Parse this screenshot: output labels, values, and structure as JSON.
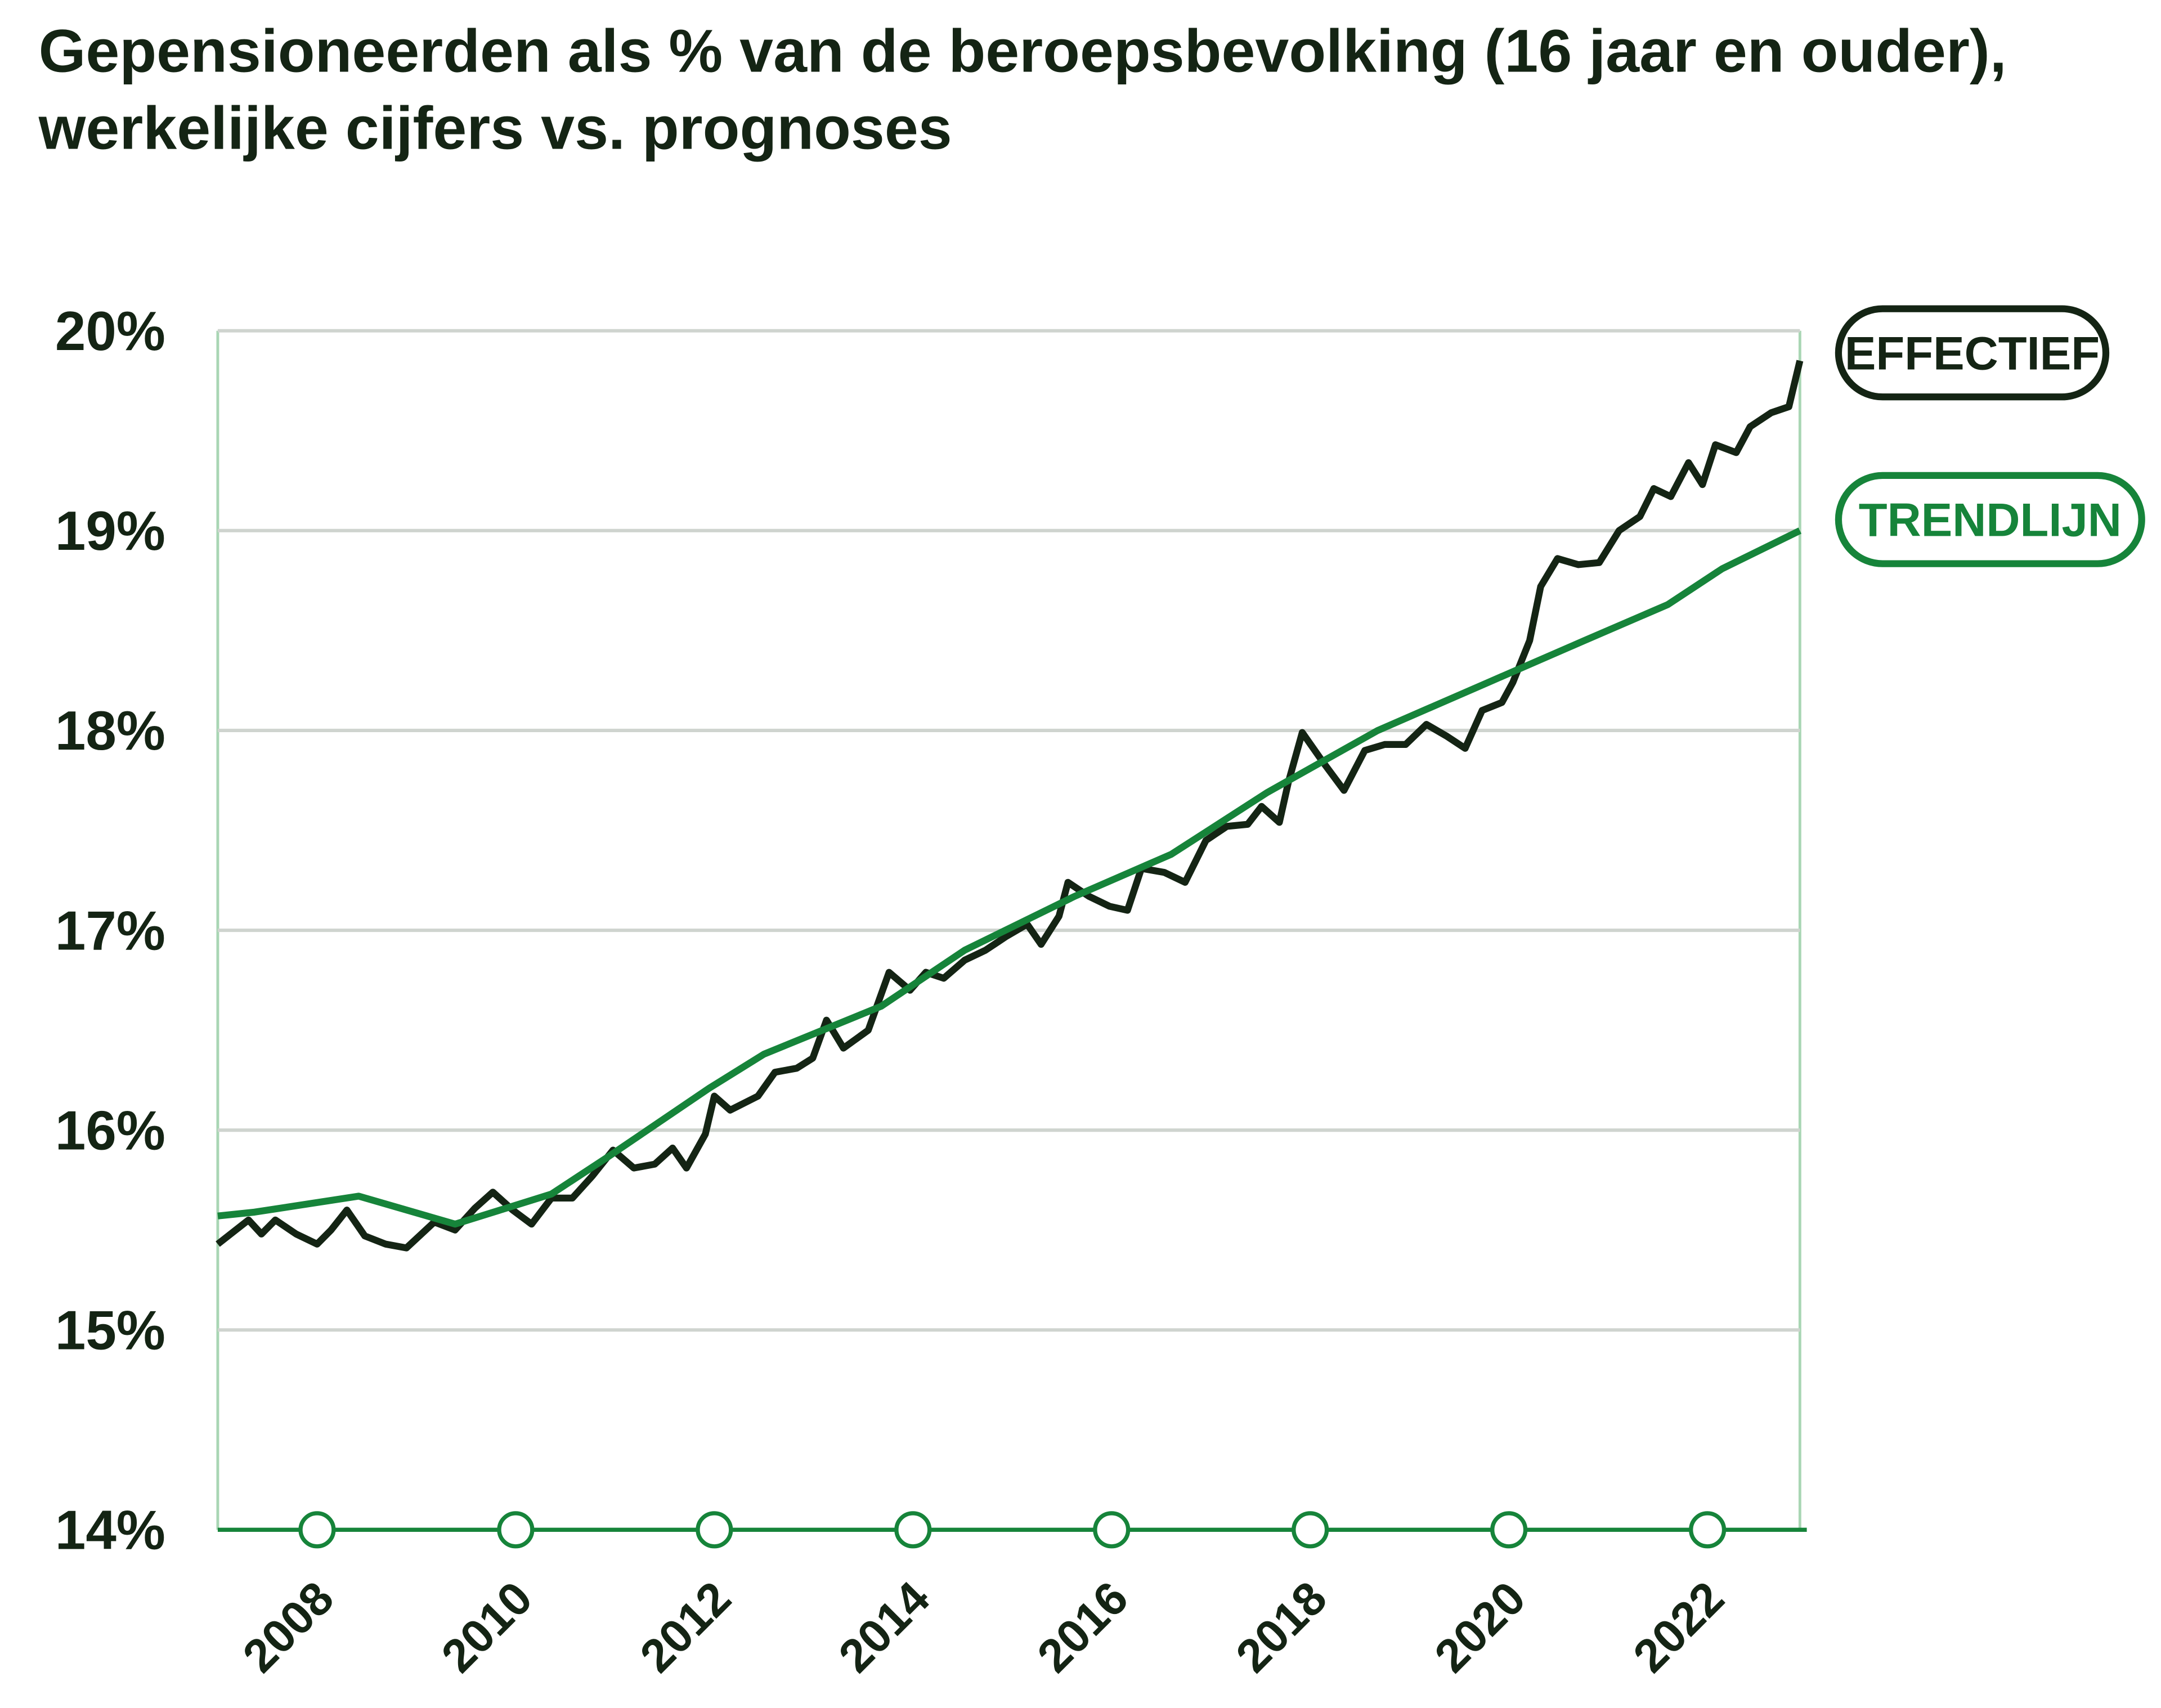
{
  "chart_data": {
    "type": "line",
    "title": "Gepensioneerden als % van de beroepsbevolking (16 jaar en ouder), werkelijke cijfers vs. prognoses",
    "xlim": [
      2007,
      2023
    ],
    "xticks": [
      2008,
      2010,
      2012,
      2014,
      2016,
      2018,
      2020,
      2022
    ],
    "ylim": [
      14,
      20
    ],
    "yticks": [
      {
        "value": 14,
        "label": "14%"
      },
      {
        "value": 15,
        "label": "15%"
      },
      {
        "value": 16,
        "label": "16%"
      },
      {
        "value": 17,
        "label": "17%"
      },
      {
        "value": 18,
        "label": "18%"
      },
      {
        "value": 19,
        "label": "19%"
      },
      {
        "value": 20,
        "label": "20%"
      }
    ],
    "grid": true,
    "series": [
      {
        "name": "EFFECTIEF",
        "color": "#142414",
        "x": [
          2007.0,
          2007.31,
          2007.44,
          2007.58,
          2007.79,
          2008.0,
          2008.14,
          2008.3,
          2008.48,
          2008.69,
          2008.9,
          2009.18,
          2009.39,
          2009.59,
          2009.77,
          2009.97,
          2010.16,
          2010.36,
          2010.57,
          2010.77,
          2010.98,
          2011.19,
          2011.4,
          2011.58,
          2011.72,
          2011.91,
          2012.0,
          2012.16,
          2012.44,
          2012.61,
          2012.83,
          2012.99,
          2013.13,
          2013.3,
          2013.55,
          2013.76,
          2013.97,
          2014.13,
          2014.31,
          2014.52,
          2014.73,
          2014.94,
          2015.15,
          2015.29,
          2015.47,
          2015.56,
          2015.77,
          2015.98,
          2016.16,
          2016.3,
          2016.53,
          2016.74,
          2016.95,
          2017.16,
          2017.37,
          2017.51,
          2017.69,
          2017.78,
          2017.92,
          2018.13,
          2018.34,
          2018.55,
          2018.75,
          2018.96,
          2019.17,
          2019.38,
          2019.56,
          2019.73,
          2019.93,
          2020.04,
          2020.21,
          2020.32,
          2020.49,
          2020.7,
          2020.91,
          2021.11,
          2021.32,
          2021.46,
          2021.63,
          2021.81,
          2021.95,
          2022.08,
          2022.29,
          2022.43,
          2022.64,
          2022.82,
          2022.93
        ],
        "values": [
          15.43,
          15.55,
          15.48,
          15.55,
          15.48,
          15.43,
          15.5,
          15.6,
          15.47,
          15.43,
          15.41,
          15.54,
          15.5,
          15.61,
          15.69,
          15.6,
          15.53,
          15.66,
          15.66,
          15.77,
          15.9,
          15.81,
          15.83,
          15.91,
          15.81,
          15.98,
          16.17,
          16.1,
          16.17,
          16.29,
          16.31,
          16.36,
          16.55,
          16.41,
          16.5,
          16.79,
          16.7,
          16.79,
          16.76,
          16.85,
          16.9,
          16.97,
          17.03,
          16.93,
          17.07,
          17.24,
          17.17,
          17.12,
          17.1,
          17.31,
          17.29,
          17.24,
          17.45,
          17.52,
          17.53,
          17.62,
          17.54,
          17.74,
          17.99,
          17.84,
          17.7,
          17.9,
          17.93,
          17.93,
          18.03,
          17.97,
          17.91,
          18.1,
          18.14,
          18.24,
          18.45,
          18.72,
          18.86,
          18.83,
          18.84,
          19.0,
          19.07,
          19.21,
          19.17,
          19.34,
          19.23,
          19.43,
          19.39,
          19.52,
          19.59,
          19.62,
          19.85
        ]
      },
      {
        "name": "TRENDLIJN",
        "color": "#16843a",
        "x": [
          2007.0,
          2007.37,
          2008.42,
          2009.39,
          2010.36,
          2010.91,
          2011.95,
          2012.5,
          2013.68,
          2014.52,
          2015.63,
          2016.6,
          2017.57,
          2018.68,
          2019.79,
          2020.76,
          2021.6,
          2022.15,
          2022.93
        ],
        "values": [
          15.57,
          15.59,
          15.67,
          15.53,
          15.68,
          15.86,
          16.21,
          16.38,
          16.62,
          16.9,
          17.17,
          17.38,
          17.69,
          18.0,
          18.24,
          18.45,
          18.63,
          18.81,
          19.0
        ]
      }
    ]
  }
}
